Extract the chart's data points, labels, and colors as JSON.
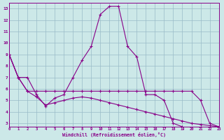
{
  "xlabel": "Windchill (Refroidissement éolien,°C)",
  "x": [
    0,
    1,
    2,
    3,
    4,
    5,
    6,
    7,
    8,
    9,
    10,
    11,
    12,
    13,
    14,
    15,
    16,
    17,
    18,
    19,
    20,
    21,
    22,
    23
  ],
  "line1": [
    9.0,
    7.0,
    7.0,
    5.5,
    4.5,
    5.2,
    5.5,
    7.0,
    8.5,
    9.7,
    12.5,
    13.2,
    13.2,
    9.7,
    8.8,
    5.5,
    5.5,
    5.0,
    3.0,
    2.7,
    null,
    null,
    null,
    null
  ],
  "line2": [
    9.0,
    7.0,
    5.8,
    5.8,
    5.8,
    5.8,
    5.8,
    5.8,
    5.8,
    5.8,
    5.8,
    5.8,
    5.8,
    5.8,
    5.8,
    5.8,
    5.8,
    5.8,
    5.8,
    5.8,
    5.8,
    5.0,
    3.0,
    2.7
  ],
  "line3": [
    9.0,
    7.0,
    5.8,
    5.3,
    4.6,
    4.8,
    5.0,
    5.2,
    5.3,
    5.2,
    5.0,
    4.8,
    4.6,
    4.4,
    4.2,
    4.0,
    3.8,
    3.6,
    3.4,
    3.2,
    3.0,
    2.9,
    2.8,
    2.7
  ],
  "line_color": "#880088",
  "bg_color": "#cce8e8",
  "grid_color": "#99bbc8",
  "xlim": [
    0,
    23
  ],
  "ylim": [
    2.7,
    13.5
  ],
  "yticks": [
    3,
    4,
    5,
    6,
    7,
    8,
    9,
    10,
    11,
    12,
    13
  ],
  "xticks": [
    0,
    1,
    2,
    3,
    4,
    5,
    6,
    7,
    8,
    9,
    10,
    11,
    12,
    13,
    14,
    15,
    16,
    17,
    18,
    19,
    20,
    21,
    22,
    23
  ]
}
